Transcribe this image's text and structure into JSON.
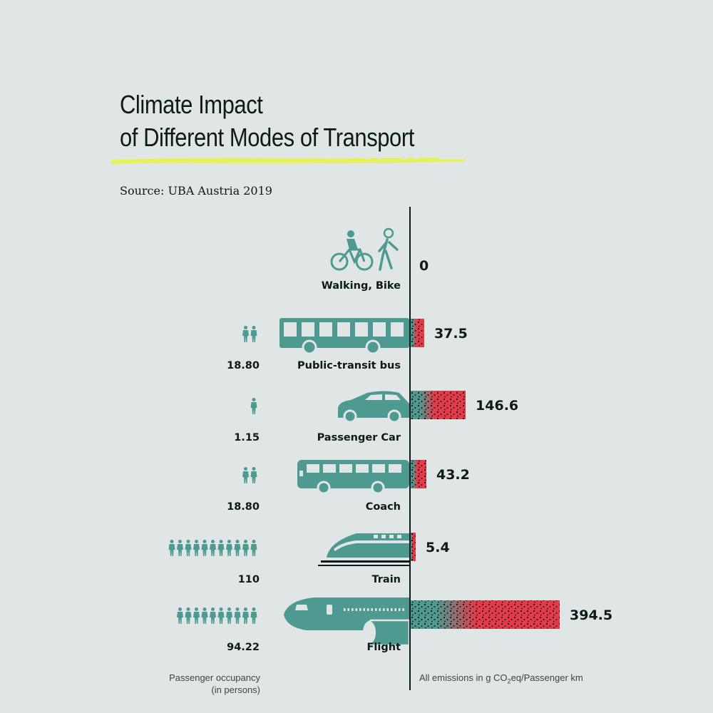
{
  "title": {
    "line1": "Climate Impact",
    "line2": "of Different Modes of Transport"
  },
  "source": "Source: UBA Austria 2019",
  "footer": {
    "occupancy_line1": "Passenger occupancy",
    "occupancy_line2": "(in persons)",
    "emissions_prefix": "All emissions in g CO",
    "emissions_sub": "2",
    "emissions_suffix": "eq/Passenger km"
  },
  "colors": {
    "background": "#dfe6e5",
    "teal": "#4e9a91",
    "red": "#e43a4a",
    "dots": "#111111",
    "highlight": "#e4f25a",
    "text": "#0d1a19"
  },
  "chart_data": {
    "type": "bar",
    "orientation": "horizontal",
    "categories": [
      "Walking, Bike",
      "Public-transit bus",
      "Passenger Car",
      "Coach",
      "Train",
      "Flight"
    ],
    "series": [
      {
        "values": [
          0,
          37.5,
          146.6,
          43.2,
          5.4,
          394.5
        ]
      }
    ],
    "value_labels": [
      "0",
      "37.5",
      "146.6",
      "43.2",
      "5.4",
      "394.5"
    ],
    "occupancy": [
      "",
      "18.80",
      "1.15",
      "18.80",
      "110",
      "94.22"
    ],
    "person_icon_counts": [
      0,
      2,
      1,
      2,
      11,
      10
    ],
    "icons": [
      "bicycle-pedestrian-icon",
      "bus-icon",
      "car-icon",
      "coach-icon",
      "train-icon",
      "airplane-icon"
    ],
    "xlim": [
      0,
      394.5
    ]
  }
}
